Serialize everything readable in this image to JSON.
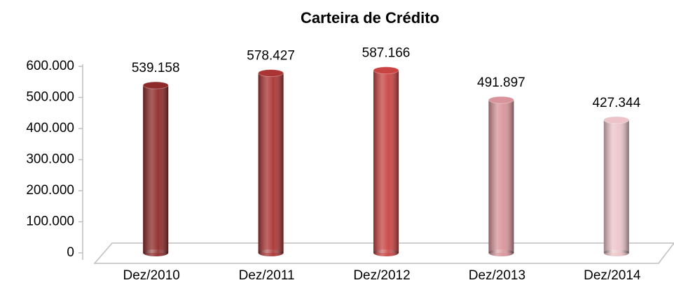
{
  "chart_data": {
    "type": "bar",
    "title": "Carteira de Crédito",
    "categories": [
      "Dez/2010",
      "Dez/2011",
      "Dez/2012",
      "Dez/2013",
      "Dez/2014"
    ],
    "values": [
      539158,
      578427,
      587166,
      491897,
      427344
    ],
    "value_labels": [
      "539.158",
      "578.427",
      "587.166",
      "491.897",
      "427.344"
    ],
    "colors": [
      "#8e2a2a",
      "#ab3434",
      "#c94343",
      "#d8949a",
      "#ecc4c8"
    ],
    "ylim": [
      0,
      600000
    ],
    "yticks": [
      0,
      {
        "value": 100000,
        "label": "100.000"
      },
      {
        "value": 200000,
        "label": "200.000"
      },
      {
        "value": 300000,
        "label": "300.000"
      },
      {
        "value": 400000,
        "label": "400.000"
      },
      {
        "value": 500000,
        "label": "500.000"
      },
      {
        "value": 600000,
        "label": "600.000"
      }
    ]
  }
}
